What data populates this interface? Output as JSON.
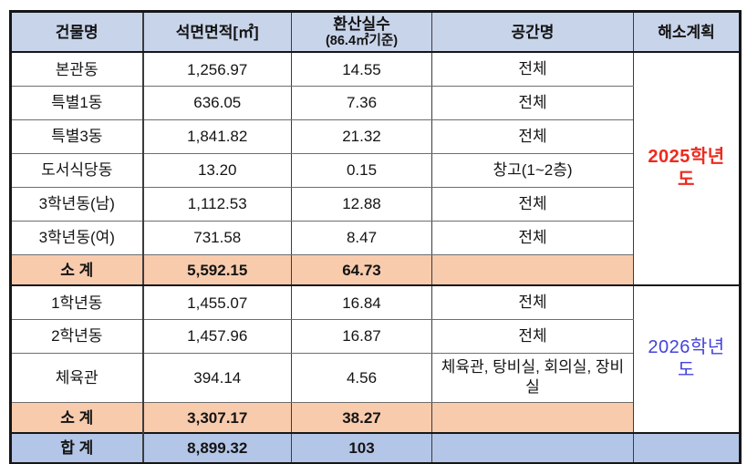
{
  "colors": {
    "header_bg": "#c8d4ea",
    "subtotal_bg": "#f8cbad",
    "total_bg": "#b4c6e7",
    "plan_2025_text": "#ee2a1e",
    "plan_2026_text": "#4343dd"
  },
  "chart_data": {
    "type": "table",
    "header": {
      "building": "건물명",
      "area": "석면면적[㎡]",
      "rooms_line1": "환산실수",
      "rooms_line2": "(86.4㎡기준)",
      "space": "공간명",
      "plan": "해소계획"
    },
    "groups": [
      {
        "plan": {
          "label": "2025학년도",
          "color": "#ee2a1e",
          "weight": "700"
        },
        "rows": [
          {
            "building": "본관동",
            "area": "1,256.97",
            "rooms": "14.55",
            "space": "전체"
          },
          {
            "building": "특별1동",
            "area": "636.05",
            "rooms": "7.36",
            "space": "전체"
          },
          {
            "building": "특별3동",
            "area": "1,841.82",
            "rooms": "21.32",
            "space": "전체"
          },
          {
            "building": "도서식당동",
            "area": "13.20",
            "rooms": "0.15",
            "space": "창고(1~2층)"
          },
          {
            "building": "3학년동(남)",
            "area": "1,112.53",
            "rooms": "12.88",
            "space": "전체"
          },
          {
            "building": "3학년동(여)",
            "area": "731.58",
            "rooms": "8.47",
            "space": "전체"
          }
        ],
        "subtotal": {
          "label": "소 계",
          "area": "5,592.15",
          "rooms": "64.73",
          "space": ""
        }
      },
      {
        "plan": {
          "label": "2026학년도",
          "color": "#4343dd",
          "weight": "500"
        },
        "rows": [
          {
            "building": "1학년동",
            "area": "1,455.07",
            "rooms": "16.84",
            "space": "전체"
          },
          {
            "building": "2학년동",
            "area": "1,457.96",
            "rooms": "16.87",
            "space": "전체"
          },
          {
            "building": "체육관",
            "area": "394.14",
            "rooms": "4.56",
            "space": "체육관, 탕비실, 회의실, 장비실",
            "tall": true
          }
        ],
        "subtotal": {
          "label": "소 계",
          "area": "3,307.17",
          "rooms": "38.27",
          "space": ""
        }
      }
    ],
    "total": {
      "label": "합 계",
      "area": "8,899.32",
      "rooms": "103",
      "space": "",
      "plan": ""
    }
  }
}
